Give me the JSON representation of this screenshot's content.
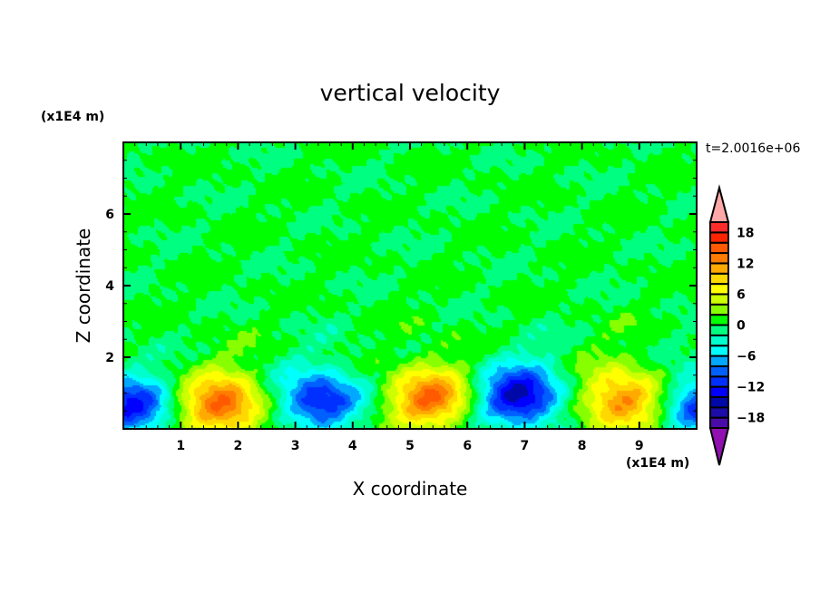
{
  "chart_data": {
    "type": "heatmap",
    "subtype": "filled-contour",
    "title": "vertical velocity",
    "xlabel": "X coordinate",
    "ylabel": "Z coordinate",
    "x_unit_label": "(x1E4 m)",
    "y_unit_label": "(x1E4 m)",
    "time_label": "t=2.0016e+06",
    "xlim": [
      0,
      10
    ],
    "ylim": [
      0,
      8
    ],
    "xticks": [
      1,
      2,
      3,
      4,
      5,
      6,
      7,
      8,
      9
    ],
    "yticks": [
      2,
      4,
      6
    ],
    "colorbar": {
      "levels": [
        -20,
        -18,
        -16,
        -14,
        -12,
        -10,
        -8,
        -6,
        -4,
        -2,
        0,
        2,
        4,
        6,
        8,
        10,
        12,
        14,
        16,
        18,
        20
      ],
      "tick_labels": [
        "18",
        "12",
        "6",
        "0",
        "-6",
        "-12",
        "-18"
      ],
      "tick_values": [
        18,
        12,
        6,
        0,
        -6,
        -12,
        -18
      ],
      "colors": [
        "#4a0ca8",
        "#1c0ca8",
        "#0008a8",
        "#0000ff",
        "#0030ff",
        "#0060ff",
        "#00a8ff",
        "#00ffff",
        "#00ffcc",
        "#00ff80",
        "#00ff00",
        "#88ff00",
        "#ccff00",
        "#ffff00",
        "#ffd800",
        "#ffaa00",
        "#ff7c00",
        "#ff5a00",
        "#ff2400",
        "#ff2c2c"
      ],
      "over_color": "#ffa8a8",
      "under_color": "#9010b0"
    },
    "cells": [
      {
        "x": 0.15,
        "z": 0.6,
        "w": -13
      },
      {
        "x": 1.7,
        "z": 0.65,
        "w": 15
      },
      {
        "x": 3.4,
        "z": 0.8,
        "w": -13
      },
      {
        "x": 5.35,
        "z": 0.85,
        "w": 14
      },
      {
        "x": 6.9,
        "z": 0.9,
        "w": -16
      },
      {
        "x": 8.7,
        "z": 0.8,
        "w": 13
      },
      {
        "x": 10.1,
        "z": 0.7,
        "w": -12
      }
    ],
    "background_range": [
      -2,
      2
    ]
  }
}
